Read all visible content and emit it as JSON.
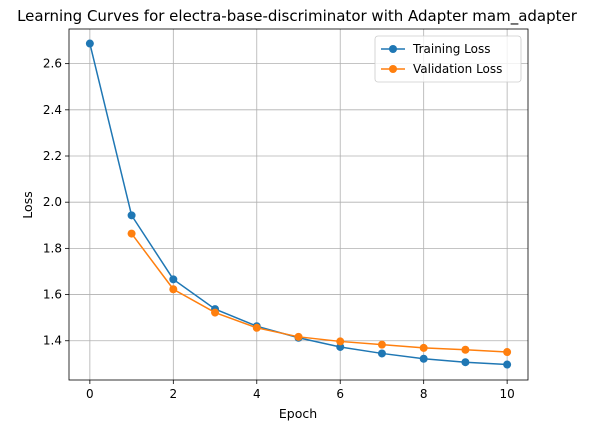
{
  "chart_data": {
    "type": "line",
    "title": "Learning Curves for electra-base-discriminator with Adapter mam_adapter",
    "xlabel": "Epoch",
    "ylabel": "Loss",
    "xlim": [
      -0.5,
      10.5
    ],
    "ylim": [
      1.23,
      2.75
    ],
    "xticks": [
      0,
      2,
      4,
      6,
      8,
      10
    ],
    "yticks": [
      1.4,
      1.6,
      1.8,
      2.0,
      2.2,
      2.4,
      2.6
    ],
    "xtick_labels": [
      "0",
      "2",
      "4",
      "6",
      "8",
      "10"
    ],
    "ytick_labels": [
      "1.4",
      "1.6",
      "1.8",
      "2.0",
      "2.2",
      "2.4",
      "2.6"
    ],
    "grid": true,
    "legend_position": "top-right",
    "series": [
      {
        "name": "Training Loss",
        "color": "#1f77b4",
        "marker": "circle",
        "x": [
          0,
          1,
          2,
          3,
          4,
          5,
          6,
          7,
          8,
          9,
          10
        ],
        "y": [
          2.687,
          1.943,
          1.666,
          1.537,
          1.463,
          1.413,
          1.373,
          1.345,
          1.322,
          1.307,
          1.297
        ]
      },
      {
        "name": "Validation Loss",
        "color": "#ff7f0e",
        "marker": "circle",
        "x": [
          1,
          2,
          3,
          4,
          5,
          6,
          7,
          8,
          9,
          10
        ],
        "y": [
          1.864,
          1.623,
          1.522,
          1.456,
          1.417,
          1.397,
          1.383,
          1.369,
          1.361,
          1.351
        ]
      }
    ]
  }
}
